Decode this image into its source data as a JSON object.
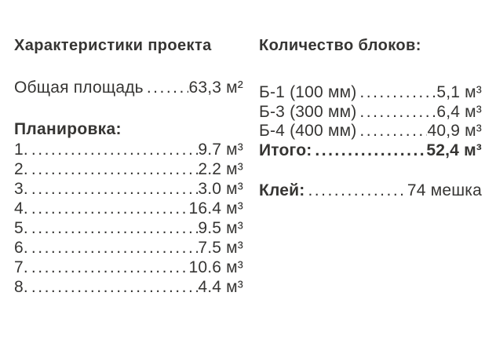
{
  "colors": {
    "text": "#363533",
    "background": "#ffffff"
  },
  "left": {
    "heading": "Характеристики проекта",
    "total_area": {
      "label": "Общая площадь",
      "value": "63,3 м²"
    },
    "layout_heading": "Планировка:",
    "layout_items": [
      {
        "num": "1.",
        "value": "9.7 м³"
      },
      {
        "num": "2.",
        "value": "2.2 м³"
      },
      {
        "num": "3.",
        "value": "3.0 м³"
      },
      {
        "num": "4.",
        "value": "16.4 м³"
      },
      {
        "num": "5.",
        "value": "9.5 м³"
      },
      {
        "num": "6.",
        "value": "7.5 м³"
      },
      {
        "num": "7.",
        "value": "10.6 м³"
      },
      {
        "num": "8.",
        "value": "4.4 м³"
      }
    ]
  },
  "right": {
    "heading": "Количество блоков:",
    "blocks": [
      {
        "label": "Б-1 (100 мм)",
        "value": "5,1 м³"
      },
      {
        "label": "Б-3 (300 мм)",
        "value": "6,4 м³"
      },
      {
        "label": "Б-4 (400 мм)",
        "value": "40,9 м³"
      }
    ],
    "total": {
      "label": "Итого:",
      "value": "52,4 м³"
    },
    "glue": {
      "label": "Клей:",
      "value": "74 мешка"
    }
  }
}
